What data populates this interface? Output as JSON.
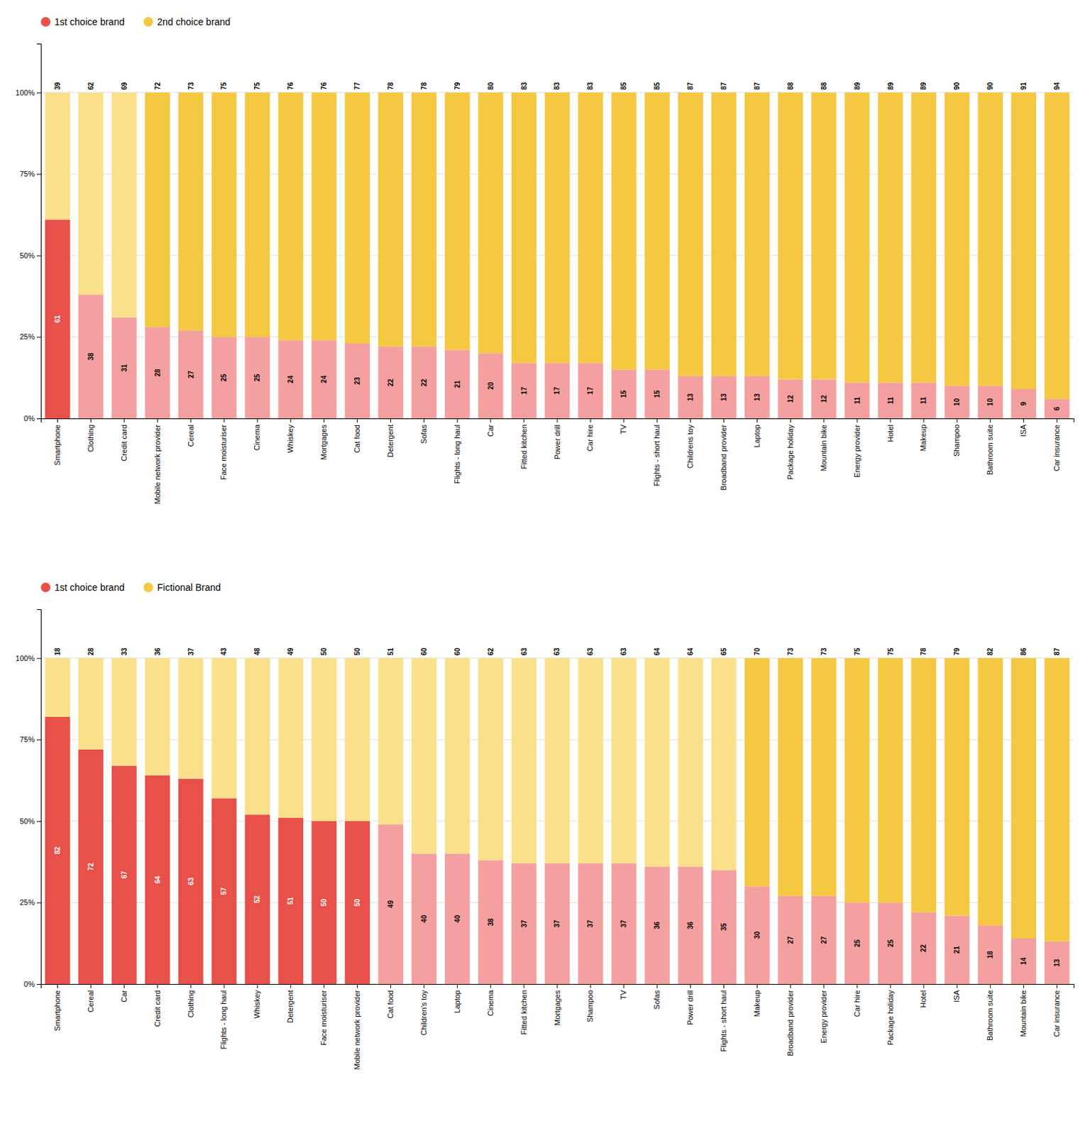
{
  "chart_data": [
    {
      "type": "bar",
      "stacked": true,
      "grid": true,
      "data_labels": true,
      "legend": "upper left",
      "categories": [
        "Smartphone",
        "Clothing",
        "Credit card",
        "Mobile network provider",
        "Cereal",
        "Face moisturiser",
        "Cinema",
        "Whiskey",
        "Mortgages",
        "Cat food",
        "Detergent",
        "Sofas",
        "Flights - long haul",
        "Car",
        "Fitted kitchen",
        "Power drill",
        "Car hire",
        "TV",
        "Flights - short haul",
        "Childrens toy",
        "Broadband provider",
        "Laptop",
        "Package holiday",
        "Mountain bike",
        "Energy provider",
        "Hotel",
        "Makeup",
        "Shampoo",
        "Bathroom suite",
        "ISA",
        "Car insurance"
      ],
      "series": [
        {
          "name": "1st choice brand",
          "color": "#E8504A",
          "values": [
            61,
            38,
            31,
            28,
            27,
            25,
            25,
            24,
            24,
            23,
            22,
            22,
            21,
            20,
            17,
            17,
            17,
            15,
            15,
            13,
            13,
            13,
            12,
            12,
            11,
            11,
            11,
            10,
            10,
            9,
            6
          ],
          "colors": [
            "#E8504A",
            "#F4A0A0",
            "#F4A0A0",
            "#F4A0A0",
            "#F4A0A0",
            "#F4A0A0",
            "#F4A0A0",
            "#F4A0A0",
            "#F4A0A0",
            "#F4A0A0",
            "#F4A0A0",
            "#F4A0A0",
            "#F4A0A0",
            "#F4A0A0",
            "#F4A0A0",
            "#F4A0A0",
            "#F4A0A0",
            "#F4A0A0",
            "#F4A0A0",
            "#F4A0A0",
            "#F4A0A0",
            "#F4A0A0",
            "#F4A0A0",
            "#F4A0A0",
            "#F4A0A0",
            "#F4A0A0",
            "#F4A0A0",
            "#F4A0A0",
            "#F4A0A0",
            "#F4A0A0",
            "#F4A0A0"
          ]
        },
        {
          "name": "2nd choice brand",
          "color": "#F5C842",
          "values": [
            39,
            62,
            69,
            72,
            73,
            75,
            75,
            76,
            76,
            77,
            78,
            78,
            79,
            80,
            83,
            83,
            83,
            85,
            85,
            87,
            87,
            87,
            88,
            88,
            89,
            89,
            89,
            90,
            90,
            91,
            94
          ],
          "colors": [
            "#FAE08A",
            "#FAE08A",
            "#FAE08A",
            "#F5C842",
            "#F5C842",
            "#F5C842",
            "#F5C842",
            "#F5C842",
            "#F5C842",
            "#F5C842",
            "#F5C842",
            "#F5C842",
            "#F5C842",
            "#F5C842",
            "#F5C842",
            "#F5C842",
            "#F5C842",
            "#F5C842",
            "#F5C842",
            "#F5C842",
            "#F5C842",
            "#F5C842",
            "#F5C842",
            "#F5C842",
            "#F5C842",
            "#F5C842",
            "#F5C842",
            "#F5C842",
            "#F5C842",
            "#F5C842",
            "#F5C842"
          ]
        }
      ],
      "ylim": [
        0,
        115
      ],
      "yticks": [
        {
          "value": 0,
          "label": "0%"
        },
        {
          "value": 25,
          "label": "25%"
        },
        {
          "value": 50,
          "label": "50%"
        },
        {
          "value": 75,
          "label": "75%"
        },
        {
          "value": 100,
          "label": "100%"
        }
      ]
    },
    {
      "type": "bar",
      "stacked": true,
      "grid": true,
      "data_labels": true,
      "legend": "upper left",
      "categories": [
        "Smartphone",
        "Cereal",
        "Car",
        "Credit card",
        "Clothing",
        "Flights - long haul",
        "Whiskey",
        "Detergent",
        "Face moisturiser",
        "Mobile network provider",
        "Cat food",
        "Children's toy",
        "Laptop",
        "Cinema",
        "Fitted kitchen",
        "Mortgages",
        "Shampoo",
        "TV",
        "Sofas",
        "Power drill",
        "Flights - short haul",
        "Makeup",
        "Broadband provider",
        "Energy provider",
        "Car hire",
        "Package holiday",
        "Hotel",
        "ISA",
        "Bathroom suite",
        "Mountain bike",
        "Car insurance"
      ],
      "series": [
        {
          "name": "1st choice brand",
          "color": "#E8504A",
          "values": [
            82,
            72,
            67,
            64,
            63,
            57,
            52,
            51,
            50,
            50,
            49,
            40,
            40,
            38,
            37,
            37,
            37,
            37,
            36,
            36,
            35,
            30,
            27,
            27,
            25,
            25,
            22,
            21,
            18,
            14,
            13
          ],
          "colors": [
            "#E8504A",
            "#E8504A",
            "#E8504A",
            "#E8504A",
            "#E8504A",
            "#E8504A",
            "#E8504A",
            "#E8504A",
            "#E8504A",
            "#E8504A",
            "#F4A0A0",
            "#F4A0A0",
            "#F4A0A0",
            "#F4A0A0",
            "#F4A0A0",
            "#F4A0A0",
            "#F4A0A0",
            "#F4A0A0",
            "#F4A0A0",
            "#F4A0A0",
            "#F4A0A0",
            "#F4A0A0",
            "#F4A0A0",
            "#F4A0A0",
            "#F4A0A0",
            "#F4A0A0",
            "#F4A0A0",
            "#F4A0A0",
            "#F4A0A0",
            "#F4A0A0",
            "#F4A0A0"
          ]
        },
        {
          "name": "Fictional Brand",
          "color": "#F5C842",
          "values": [
            18,
            28,
            33,
            36,
            37,
            43,
            48,
            49,
            50,
            50,
            51,
            60,
            60,
            62,
            63,
            63,
            63,
            63,
            64,
            64,
            65,
            70,
            73,
            73,
            75,
            75,
            78,
            79,
            82,
            86,
            87
          ],
          "colors": [
            "#FAE08A",
            "#FAE08A",
            "#FAE08A",
            "#FAE08A",
            "#FAE08A",
            "#FAE08A",
            "#FAE08A",
            "#FAE08A",
            "#FAE08A",
            "#FAE08A",
            "#FAE08A",
            "#FAE08A",
            "#FAE08A",
            "#FAE08A",
            "#FAE08A",
            "#FAE08A",
            "#FAE08A",
            "#FAE08A",
            "#FAE08A",
            "#FAE08A",
            "#FAE08A",
            "#F5C842",
            "#F5C842",
            "#F5C842",
            "#F5C842",
            "#F5C842",
            "#F5C842",
            "#F5C842",
            "#F5C842",
            "#F5C842",
            "#F5C842"
          ]
        }
      ],
      "ylim": [
        0,
        115
      ],
      "yticks": [
        {
          "value": 0,
          "label": "0%"
        },
        {
          "value": 25,
          "label": "25%"
        },
        {
          "value": 50,
          "label": "50%"
        },
        {
          "value": 75,
          "label": "75%"
        },
        {
          "value": 100,
          "label": "100%"
        }
      ]
    }
  ]
}
